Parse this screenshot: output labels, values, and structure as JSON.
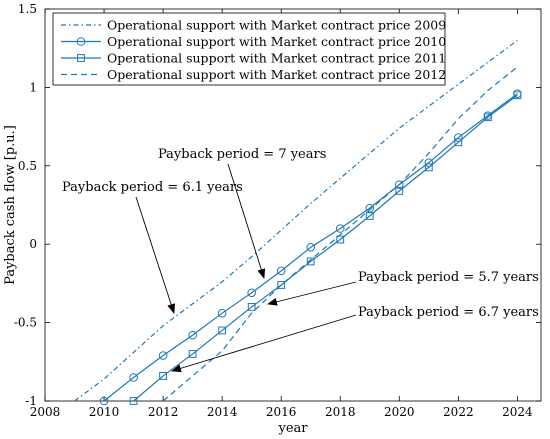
{
  "chart_data": {
    "type": "line",
    "xlabel": "year",
    "ylabel": "Payback cash flow [p.u.]",
    "xlim": [
      2008,
      2024.8
    ],
    "ylim": [
      -1,
      1.5
    ],
    "xticks": [
      2008,
      2010,
      2012,
      2014,
      2016,
      2018,
      2020,
      2022,
      2024
    ],
    "xtick_labels": [
      "2008",
      "2010",
      "2012",
      "2014",
      "2016",
      "2018",
      "2020",
      "2022",
      "2024"
    ],
    "yticks": [
      -1,
      -0.5,
      0,
      0.5,
      1,
      1.5
    ],
    "ytick_labels": [
      "-1",
      "-0.5",
      "0",
      "0.5",
      "1",
      "1.5"
    ],
    "grid": false,
    "legend_position": "top-left",
    "color": "#1f77b4",
    "series": [
      {
        "name": "Operational support with Market contract price 2009",
        "style": "dashdot",
        "marker": "none",
        "x": [
          2009,
          2010,
          2011,
          2012,
          2013,
          2014,
          2015,
          2016,
          2017,
          2018,
          2019,
          2020,
          2021,
          2022,
          2023,
          2024
        ],
        "y": [
          -1.0,
          -0.86,
          -0.69,
          -0.52,
          -0.38,
          -0.24,
          -0.08,
          0.09,
          0.26,
          0.42,
          0.58,
          0.74,
          0.88,
          1.02,
          1.16,
          1.3
        ]
      },
      {
        "name": "Operational support with Market contract price 2010",
        "style": "solid",
        "marker": "circle",
        "x": [
          2010,
          2011,
          2012,
          2013,
          2014,
          2015,
          2016,
          2017,
          2018,
          2019,
          2020,
          2021,
          2022,
          2023,
          2024
        ],
        "y": [
          -1.0,
          -0.85,
          -0.71,
          -0.58,
          -0.44,
          -0.31,
          -0.17,
          -0.02,
          0.1,
          0.23,
          0.38,
          0.52,
          0.68,
          0.82,
          0.96
        ]
      },
      {
        "name": "Operational support with Market contract price 2011",
        "style": "solid",
        "marker": "square",
        "x": [
          2011,
          2012,
          2013,
          2014,
          2015,
          2016,
          2017,
          2018,
          2019,
          2020,
          2021,
          2022,
          2023,
          2024
        ],
        "y": [
          -1.0,
          -0.84,
          -0.7,
          -0.55,
          -0.4,
          -0.26,
          -0.11,
          0.03,
          0.18,
          0.34,
          0.49,
          0.65,
          0.81,
          0.95
        ]
      },
      {
        "name": "Operational support with Market contract price 2012",
        "style": "dashed",
        "marker": "none",
        "x": [
          2012,
          2013,
          2014,
          2015,
          2016,
          2017,
          2018,
          2019,
          2020,
          2021,
          2022,
          2023,
          2024
        ],
        "y": [
          -1.0,
          -0.84,
          -0.68,
          -0.44,
          -0.26,
          -0.1,
          0.06,
          0.22,
          0.38,
          0.58,
          0.8,
          0.98,
          1.13
        ]
      }
    ],
    "annotations": [
      {
        "text": "Payback period = 7 years",
        "tip": [
          2015.3,
          -0.24
        ],
        "label_anchor": "left"
      },
      {
        "text": "Payback period = 6.1 years",
        "tip": [
          2012.0,
          -0.47
        ],
        "label_anchor": "left"
      },
      {
        "text": "Payback period = 5.7 years",
        "tip": [
          2015.4,
          -0.4
        ],
        "label_anchor": "left"
      },
      {
        "text": "Payback period = 6.7 years",
        "tip": [
          2012.1,
          -0.84
        ],
        "label_anchor": "left"
      }
    ]
  }
}
